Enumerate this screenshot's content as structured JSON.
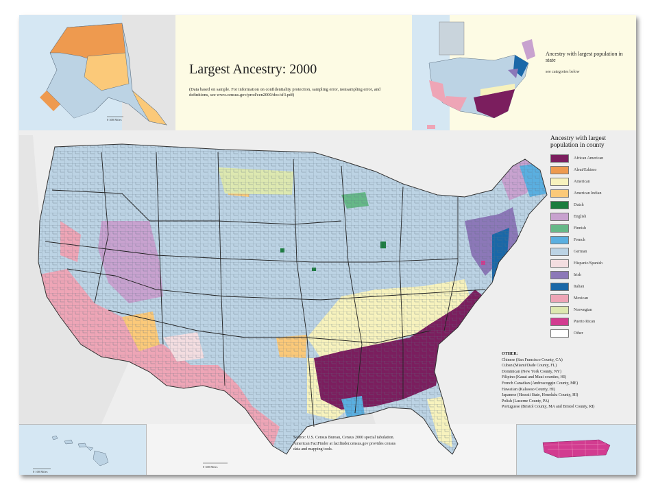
{
  "title": "Largest Ancestry: 2000",
  "note": "(Data based on sample. For information on confidentiality protection, sampling error, nonsampling error, and definitions, see www.census.gov/prod/cen2000/doc/sf3.pdf)",
  "mini_map": {
    "title": "Ancestry with largest population in state",
    "subtitle": "see categories below"
  },
  "legend": {
    "title": "Ancestry with largest population in county",
    "items": [
      {
        "label": "African American",
        "color": "#7b1e5e"
      },
      {
        "label": "Aleut/Eskimo",
        "color": "#ee9a4f"
      },
      {
        "label": "American",
        "color": "#f7f2bd"
      },
      {
        "label": "American Indian",
        "color": "#fbc979"
      },
      {
        "label": "Dutch",
        "color": "#1b7d3e"
      },
      {
        "label": "English",
        "color": "#c8a2cf"
      },
      {
        "label": "Finnish",
        "color": "#66b888"
      },
      {
        "label": "French",
        "color": "#5aafe0"
      },
      {
        "label": "German",
        "color": "#bcd3e4"
      },
      {
        "label": "Hispanic/Spanish",
        "color": "#f3dde0"
      },
      {
        "label": "Irish",
        "color": "#8c78b8"
      },
      {
        "label": "Italian",
        "color": "#1a68a8"
      },
      {
        "label": "Mexican",
        "color": "#eea5b6"
      },
      {
        "label": "Norwegian",
        "color": "#dde8b0"
      },
      {
        "label": "Puerto Rican",
        "color": "#d23c90"
      },
      {
        "label": "Other",
        "color": "#ffffff"
      }
    ]
  },
  "other": {
    "title": "OTHER:",
    "items": [
      "Chinese (San Francisco County, CA)",
      "Cuban (Miami/Dade County, FL)",
      "Dominican (New York County, NY)",
      "Filipino (Kauai and Maui counties, HI)",
      "French Canadian (Androscoggin County, ME)",
      "Hawaiian (Kalawao County, HI)",
      "Japanese (Hawaii State, Honolulu County, HI)",
      "Polish (Luzerne County, PA)",
      "Portuguese (Bristol County, MA and Bristol County, RI)"
    ]
  },
  "source": "Source: U.S. Census Bureau, Census 2000 special tabulation. American FactFinder at factfinder.census.gov provides census data and mapping tools.",
  "scales": {
    "alaska": "0     300 Miles",
    "hawaii": "0     100 Miles",
    "main": "0     300 Miles"
  }
}
